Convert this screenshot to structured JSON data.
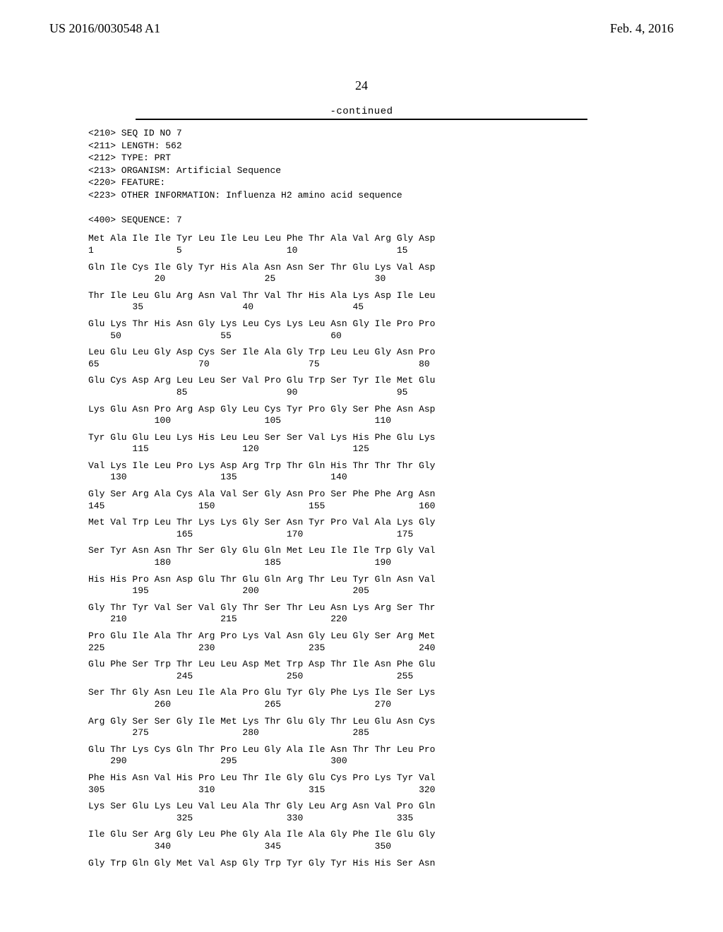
{
  "header": {
    "publication": "US 2016/0030548 A1",
    "date": "Feb. 4, 2016"
  },
  "page_number": "24",
  "continued": "-continued",
  "meta_lines": [
    "<210> SEQ ID NO 7",
    "<211> LENGTH: 562",
    "<212> TYPE: PRT",
    "<213> ORGANISM: Artificial Sequence",
    "<220> FEATURE:",
    "<223> OTHER INFORMATION: Influenza H2 amino acid sequence",
    "",
    "<400> SEQUENCE: 7"
  ],
  "rows": [
    {
      "aa": "Met Ala Ile Ile Tyr Leu Ile Leu Leu Phe Thr Ala Val Arg Gly Asp",
      "num": "1               5                   10                  15"
    },
    {
      "aa": "Gln Ile Cys Ile Gly Tyr His Ala Asn Asn Ser Thr Glu Lys Val Asp",
      "num": "            20                  25                  30"
    },
    {
      "aa": "Thr Ile Leu Glu Arg Asn Val Thr Val Thr His Ala Lys Asp Ile Leu",
      "num": "        35                  40                  45"
    },
    {
      "aa": "Glu Lys Thr His Asn Gly Lys Leu Cys Lys Leu Asn Gly Ile Pro Pro",
      "num": "    50                  55                  60"
    },
    {
      "aa": "Leu Glu Leu Gly Asp Cys Ser Ile Ala Gly Trp Leu Leu Gly Asn Pro",
      "num": "65                  70                  75                  80"
    },
    {
      "aa": "Glu Cys Asp Arg Leu Leu Ser Val Pro Glu Trp Ser Tyr Ile Met Glu",
      "num": "                85                  90                  95"
    },
    {
      "aa": "Lys Glu Asn Pro Arg Asp Gly Leu Cys Tyr Pro Gly Ser Phe Asn Asp",
      "num": "            100                 105                 110"
    },
    {
      "aa": "Tyr Glu Glu Leu Lys His Leu Leu Ser Ser Val Lys His Phe Glu Lys",
      "num": "        115                 120                 125"
    },
    {
      "aa": "Val Lys Ile Leu Pro Lys Asp Arg Trp Thr Gln His Thr Thr Thr Gly",
      "num": "    130                 135                 140"
    },
    {
      "aa": "Gly Ser Arg Ala Cys Ala Val Ser Gly Asn Pro Ser Phe Phe Arg Asn",
      "num": "145                 150                 155                 160"
    },
    {
      "aa": "Met Val Trp Leu Thr Lys Lys Gly Ser Asn Tyr Pro Val Ala Lys Gly",
      "num": "                165                 170                 175"
    },
    {
      "aa": "Ser Tyr Asn Asn Thr Ser Gly Glu Gln Met Leu Ile Ile Trp Gly Val",
      "num": "            180                 185                 190"
    },
    {
      "aa": "His His Pro Asn Asp Glu Thr Glu Gln Arg Thr Leu Tyr Gln Asn Val",
      "num": "        195                 200                 205"
    },
    {
      "aa": "Gly Thr Tyr Val Ser Val Gly Thr Ser Thr Leu Asn Lys Arg Ser Thr",
      "num": "    210                 215                 220"
    },
    {
      "aa": "Pro Glu Ile Ala Thr Arg Pro Lys Val Asn Gly Leu Gly Ser Arg Met",
      "num": "225                 230                 235                 240"
    },
    {
      "aa": "Glu Phe Ser Trp Thr Leu Leu Asp Met Trp Asp Thr Ile Asn Phe Glu",
      "num": "                245                 250                 255"
    },
    {
      "aa": "Ser Thr Gly Asn Leu Ile Ala Pro Glu Tyr Gly Phe Lys Ile Ser Lys",
      "num": "            260                 265                 270"
    },
    {
      "aa": "Arg Gly Ser Ser Gly Ile Met Lys Thr Glu Gly Thr Leu Glu Asn Cys",
      "num": "        275                 280                 285"
    },
    {
      "aa": "Glu Thr Lys Cys Gln Thr Pro Leu Gly Ala Ile Asn Thr Thr Leu Pro",
      "num": "    290                 295                 300"
    },
    {
      "aa": "Phe His Asn Val His Pro Leu Thr Ile Gly Glu Cys Pro Lys Tyr Val",
      "num": "305                 310                 315                 320"
    },
    {
      "aa": "Lys Ser Glu Lys Leu Val Leu Ala Thr Gly Leu Arg Asn Val Pro Gln",
      "num": "                325                 330                 335"
    },
    {
      "aa": "Ile Glu Ser Arg Gly Leu Phe Gly Ala Ile Ala Gly Phe Ile Glu Gly",
      "num": "            340                 345                 350"
    },
    {
      "aa": "Gly Trp Gln Gly Met Val Asp Gly Trp Tyr Gly Tyr His His Ser Asn",
      "num": ""
    }
  ]
}
